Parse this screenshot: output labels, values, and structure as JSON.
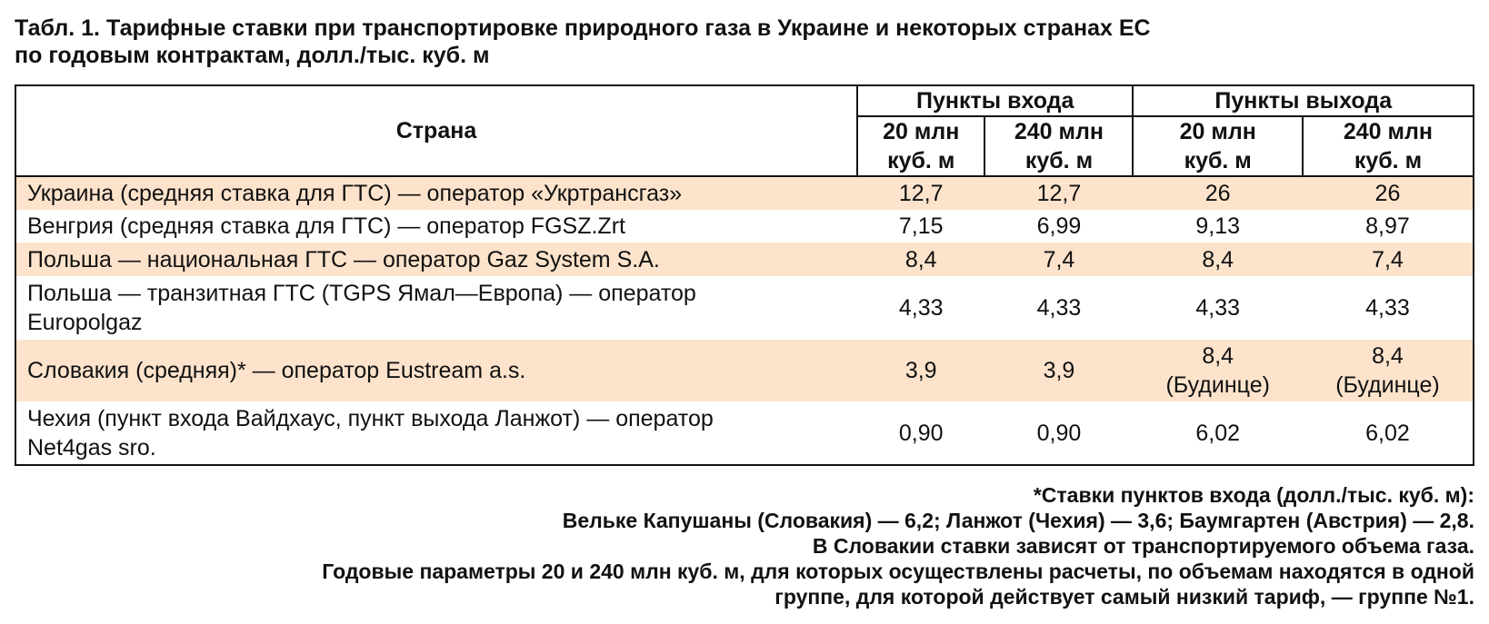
{
  "title": {
    "line1": "Табл. 1. Тарифные ставки при транспортировке природного газа в Украине и некоторых странах ЕС",
    "line2": "по годовым контрактам, долл./тыс. куб. м"
  },
  "table": {
    "country_header": "Страна",
    "entry_header": "Пункты входа",
    "exit_header": "Пункты выхода",
    "sub_20_line1": "20 млн",
    "sub_240_line1": "240 млн",
    "sub_unit": "куб. м",
    "rows": [
      {
        "country": "Украина (средняя ставка для ГТС) — оператор «Укртрансгаз»",
        "country_line2": "",
        "in20": "12,7",
        "in240": "12,7",
        "out20": "26",
        "out20_note": "",
        "out240": "26",
        "out240_note": ""
      },
      {
        "country": "Венгрия (средняя ставка для ГТС) — оператор FGSZ.Zrt",
        "country_line2": "",
        "in20": "7,15",
        "in240": "6,99",
        "out20": "9,13",
        "out20_note": "",
        "out240": "8,97",
        "out240_note": ""
      },
      {
        "country": "Польша — национальная ГТС — оператор Gaz System S.A.",
        "country_line2": "",
        "in20": "8,4",
        "in240": "7,4",
        "out20": "8,4",
        "out20_note": "",
        "out240": "7,4",
        "out240_note": ""
      },
      {
        "country": "Польша — транзитная ГТС (TGPS Ямал—Европа) — оператор",
        "country_line2": "Europolgaz",
        "in20": "4,33",
        "in240": "4,33",
        "out20": "4,33",
        "out20_note": "",
        "out240": "4,33",
        "out240_note": ""
      },
      {
        "country": "Словакия (средняя)* — оператор Eustream a.s.",
        "country_line2": "",
        "in20": "3,9",
        "in240": "3,9",
        "out20": "8,4",
        "out20_note": "(Будинце)",
        "out240": "8,4",
        "out240_note": "(Будинце)"
      },
      {
        "country": "Чехия (пункт входа Вайдхаус, пункт выхода Ланжот) — оператор",
        "country_line2": "Net4gas sro.",
        "in20": "0,90",
        "in240": "0,90",
        "out20": "6,02",
        "out20_note": "",
        "out240": "6,02",
        "out240_note": ""
      }
    ]
  },
  "footnotes": [
    "*Ставки пунктов входа (долл./тыс. куб. м):",
    "Вельке Капушаны (Словакия) — 6,2; Ланжот (Чехия) — 3,6; Баумгартен (Австрия) — 2,8.",
    "В Словакии ставки зависят от транспортируемого объема газа.",
    "Годовые параметры 20 и 240 млн куб. м, для которых осуществлены расчеты, по объемам находятся в одной",
    "группе, для которой действует самый низкий тариф, — группе №1."
  ],
  "colors": {
    "row_shade": "#fde3cc",
    "border": "#111111"
  }
}
